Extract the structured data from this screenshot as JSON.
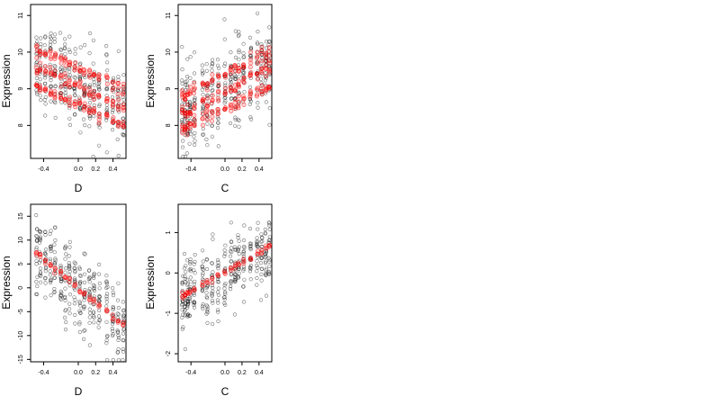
{
  "chart_data": [
    {
      "type": "scatter",
      "xlabel": "D",
      "ylabel": "Expression",
      "xlim": [
        -0.55,
        0.55
      ],
      "ylim": [
        7.1,
        11.3
      ],
      "xticks": [
        -0.4,
        0.0,
        0.2,
        0.4
      ],
      "xtick_labels": [
        "-0.4",
        "0.0",
        "0.2",
        "0.4"
      ],
      "yticks": [
        8,
        9,
        10,
        11
      ],
      "ytick_labels": [
        "8",
        "9",
        "10",
        "11"
      ],
      "grid": false,
      "colors": {
        "observed": "#000000",
        "fitted": "#ff0000"
      },
      "groups_x": [
        -0.48,
        -0.44,
        -0.38,
        -0.32,
        -0.27,
        -0.2,
        -0.15,
        -0.1,
        -0.04,
        0.02,
        0.07,
        0.13,
        0.18,
        0.24,
        0.33,
        0.4,
        0.46,
        0.52
      ],
      "observed_center": {
        "slope": -1.3,
        "intercept": 9.1
      },
      "observed_spread": 0.55,
      "observed_per_group": 18,
      "fitted_lines": [
        {
          "slope": -1.1,
          "intercept": 9.55
        },
        {
          "slope": -1.1,
          "intercept": 9.05
        },
        {
          "slope": -1.1,
          "intercept": 8.55
        }
      ],
      "fitted_spread": 0.08,
      "fitted_per_group": 4
    },
    {
      "type": "scatter",
      "xlabel": "C",
      "ylabel": "Expression",
      "xlim": [
        -0.55,
        0.55
      ],
      "ylim": [
        7.1,
        11.3
      ],
      "xticks": [
        -0.4,
        0.0,
        0.2,
        0.4
      ],
      "xtick_labels": [
        "-0.4",
        "0.0",
        "0.2",
        "0.4"
      ],
      "yticks": [
        8,
        9,
        10,
        11
      ],
      "ytick_labels": [
        "8",
        "9",
        "10",
        "11"
      ],
      "grid": false,
      "colors": {
        "observed": "#000000",
        "fitted": "#ff0000"
      },
      "groups_x": [
        -0.5,
        -0.47,
        -0.44,
        -0.41,
        -0.36,
        -0.26,
        -0.21,
        -0.15,
        -0.08,
        0.0,
        0.07,
        0.12,
        0.16,
        0.22,
        0.3,
        0.38,
        0.43,
        0.48,
        0.52
      ],
      "observed_center": {
        "slope": 1.4,
        "intercept": 9.0
      },
      "observed_spread": 0.6,
      "observed_per_group": 18,
      "fitted_lines": [
        {
          "slope": 1.2,
          "intercept": 9.4
        },
        {
          "slope": 1.2,
          "intercept": 8.9
        },
        {
          "slope": 1.2,
          "intercept": 8.45
        }
      ],
      "fitted_spread": 0.1,
      "fitted_per_group": 4
    },
    {
      "type": "scatter",
      "xlabel": "D",
      "ylabel": "Expression",
      "xlim": [
        -0.55,
        0.55
      ],
      "ylim": [
        -15.5,
        17.5
      ],
      "xticks": [
        -0.4,
        0.0,
        0.2,
        0.4
      ],
      "xtick_labels": [
        "-0.4",
        "0.0",
        "0.2",
        "0.4"
      ],
      "yticks": [
        -15,
        -10,
        -5,
        0,
        5,
        10,
        15
      ],
      "ytick_labels": [
        "-15",
        "-10",
        "-5",
        "0",
        "5",
        "10",
        "15"
      ],
      "grid": false,
      "colors": {
        "observed": "#000000",
        "fitted": "#ff0000"
      },
      "groups_x": [
        -0.48,
        -0.44,
        -0.38,
        -0.32,
        -0.27,
        -0.2,
        -0.15,
        -0.1,
        -0.04,
        0.02,
        0.07,
        0.13,
        0.18,
        0.24,
        0.33,
        0.4,
        0.46,
        0.52
      ],
      "observed_center": {
        "slope": -15.0,
        "intercept": -0.5
      },
      "observed_spread": 4.0,
      "observed_per_group": 18,
      "fitted_lines": [
        {
          "slope": -15.0,
          "intercept": 0.0
        }
      ],
      "fitted_spread": 0.3,
      "fitted_per_group": 3
    },
    {
      "type": "scatter",
      "xlabel": "C",
      "ylabel": "Expression",
      "xlim": [
        -0.55,
        0.55
      ],
      "ylim": [
        -2.2,
        1.7
      ],
      "xticks": [
        -0.4,
        0.0,
        0.2,
        0.4
      ],
      "xtick_labels": [
        "-0.4",
        "0.0",
        "0.2",
        "0.4"
      ],
      "yticks": [
        -2,
        -1,
        0,
        1
      ],
      "ytick_labels": [
        "-2",
        "-1",
        "0",
        "1"
      ],
      "grid": false,
      "colors": {
        "observed": "#000000",
        "fitted": "#ff0000"
      },
      "groups_x": [
        -0.5,
        -0.47,
        -0.44,
        -0.41,
        -0.36,
        -0.26,
        -0.21,
        -0.15,
        -0.08,
        0.0,
        0.07,
        0.12,
        0.16,
        0.22,
        0.3,
        0.38,
        0.43,
        0.48,
        0.52
      ],
      "observed_center": {
        "slope": 1.1,
        "intercept": -0.05
      },
      "observed_spread": 0.45,
      "observed_per_group": 18,
      "fitted_lines": [
        {
          "slope": 1.2,
          "intercept": 0.02
        }
      ],
      "fitted_spread": 0.04,
      "fitted_per_group": 3
    }
  ]
}
